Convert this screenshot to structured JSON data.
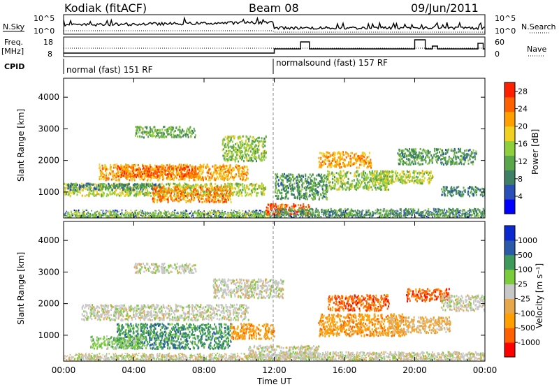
{
  "header": {
    "station": "Kodiak (fitACF)",
    "beam": "Beam 08",
    "date": "09/Jun/2011"
  },
  "strips": {
    "nsky_label": "N.Sky",
    "nsearch_label": "N.Search",
    "freq_label_1": "Freq.",
    "freq_label_2": "[MHz]",
    "nave_label": "Nave",
    "cpid_label": "CPID",
    "nsky_ticks": [
      "10^5",
      "10^0"
    ],
    "nsearch_ticks": [
      "10^5",
      "10^0"
    ],
    "freq_ticks": [
      "18",
      "8"
    ],
    "nave_ticks": [
      "60",
      "0"
    ],
    "cpid_segments": [
      {
        "start_hour": 0,
        "end_hour": 12,
        "label": "normal (fast) 151 RF"
      },
      {
        "start_hour": 12,
        "end_hour": 24,
        "label": "normalsound (fast) 157 RF"
      }
    ]
  },
  "colors": {
    "power": [
      "#0000ff",
      "#2a4fb8",
      "#3f7f63",
      "#5aa64b",
      "#8fce3c",
      "#f0d020",
      "#ffa000",
      "#ff6000",
      "#ff2000"
    ],
    "velocity": [
      "#ff0000",
      "#ff6000",
      "#ffa000",
      "#e6a84a",
      "#c8c8c8",
      "#7acc3c",
      "#3e9a5a",
      "#2a5aa8",
      "#0a2ad0"
    ]
  },
  "chart_data": [
    {
      "type": "heatmap",
      "name": "power",
      "ylabel": "Slant Range [km]",
      "xlabel": "Time UT",
      "x_ticks": [
        "00:00",
        "04:00",
        "08:00",
        "12:00",
        "16:00",
        "20:00",
        "00:00"
      ],
      "y_ticks": [
        "1000",
        "2000",
        "3000",
        "4000"
      ],
      "ylim": [
        180,
        4600
      ],
      "xlim_hours": [
        0,
        24
      ],
      "colorbar_label": "Power [dB]",
      "colorbar_ticks": [
        "4",
        "8",
        "12",
        "16",
        "20",
        "24",
        "28"
      ],
      "colorbar_range": [
        0,
        30
      ],
      "bands": [
        {
          "t0": 0.0,
          "t1": 12.0,
          "r0": 200,
          "r1": 400,
          "level": 14
        },
        {
          "t0": 0.0,
          "t1": 11.5,
          "r0": 900,
          "r1": 1300,
          "level": 16
        },
        {
          "t0": 2.0,
          "t1": 10.5,
          "r0": 1400,
          "r1": 1900,
          "level": 22
        },
        {
          "t0": 3.0,
          "t1": 7.5,
          "r0": 1500,
          "r1": 1850,
          "level": 26
        },
        {
          "t0": 0.2,
          "t1": 5.5,
          "r0": 1100,
          "r1": 1300,
          "level": 8
        },
        {
          "t0": 5.0,
          "t1": 9.5,
          "r0": 700,
          "r1": 1200,
          "level": 24
        },
        {
          "t0": 4.0,
          "t1": 7.5,
          "r0": 2750,
          "r1": 3100,
          "level": 12
        },
        {
          "t0": 9.0,
          "t1": 11.5,
          "r0": 2000,
          "r1": 2800,
          "level": 14
        },
        {
          "t0": 11.5,
          "t1": 14.0,
          "r0": 300,
          "r1": 650,
          "level": 28
        },
        {
          "t0": 12.0,
          "t1": 24.0,
          "r0": 250,
          "r1": 500,
          "level": 10
        },
        {
          "t0": 12.0,
          "t1": 15.0,
          "r0": 800,
          "r1": 1600,
          "level": 10
        },
        {
          "t0": 15.0,
          "t1": 18.5,
          "r0": 1100,
          "r1": 1700,
          "level": 14
        },
        {
          "t0": 14.5,
          "t1": 17.5,
          "r0": 1800,
          "r1": 2300,
          "level": 22
        },
        {
          "t0": 17.5,
          "t1": 21.0,
          "r0": 1300,
          "r1": 1700,
          "level": 16
        },
        {
          "t0": 19.0,
          "t1": 23.5,
          "r0": 1900,
          "r1": 2400,
          "level": 10
        },
        {
          "t0": 21.5,
          "t1": 24.0,
          "r0": 900,
          "r1": 1200,
          "level": 8
        }
      ]
    },
    {
      "type": "heatmap",
      "name": "velocity",
      "ylabel": "Slant Range [km]",
      "xlabel": "Time UT",
      "x_ticks": [
        "00:00",
        "04:00",
        "08:00",
        "12:00",
        "16:00",
        "20:00",
        "00:00"
      ],
      "y_ticks": [
        "1000",
        "2000",
        "3000",
        "4000"
      ],
      "ylim": [
        180,
        4600
      ],
      "xlim_hours": [
        0,
        24
      ],
      "colorbar_label": "Velocity [m s⁻¹]",
      "colorbar_ticks": [
        "1000",
        "500",
        "100",
        "25",
        "-25",
        "-100",
        "-500",
        "-1000"
      ],
      "bands": [
        {
          "t0": 0.0,
          "t1": 12.0,
          "r0": 200,
          "r1": 400,
          "cls": 4
        },
        {
          "t0": 1.0,
          "t1": 10.5,
          "r0": 1500,
          "r1": 2000,
          "cls": 4
        },
        {
          "t0": 3.0,
          "t1": 9.5,
          "r0": 600,
          "r1": 1400,
          "cls": 6
        },
        {
          "t0": 1.5,
          "t1": 4.5,
          "r0": 600,
          "r1": 1000,
          "cls": 5
        },
        {
          "t0": 8.5,
          "t1": 12.5,
          "r0": 2200,
          "r1": 2800,
          "cls": 4
        },
        {
          "t0": 4.0,
          "t1": 7.5,
          "r0": 3000,
          "r1": 3300,
          "cls": 4
        },
        {
          "t0": 10.5,
          "t1": 14.5,
          "r0": 300,
          "r1": 700,
          "cls": 4
        },
        {
          "t0": 9.5,
          "t1": 12.0,
          "r0": 900,
          "r1": 1400,
          "cls": 2
        },
        {
          "t0": 15.0,
          "t1": 18.5,
          "r0": 1800,
          "r1": 2300,
          "cls": 1
        },
        {
          "t0": 14.5,
          "t1": 19.5,
          "r0": 1000,
          "r1": 1700,
          "cls": 2
        },
        {
          "t0": 19.5,
          "t1": 22.0,
          "r0": 2100,
          "r1": 2500,
          "cls": 1
        },
        {
          "t0": 18.5,
          "t1": 22.0,
          "r0": 1100,
          "r1": 1600,
          "cls": 3
        },
        {
          "t0": 12.0,
          "t1": 24.0,
          "r0": 200,
          "r1": 500,
          "cls": 4
        },
        {
          "t0": 21.5,
          "t1": 24.0,
          "r0": 1800,
          "r1": 2300,
          "cls": 4
        }
      ]
    }
  ]
}
